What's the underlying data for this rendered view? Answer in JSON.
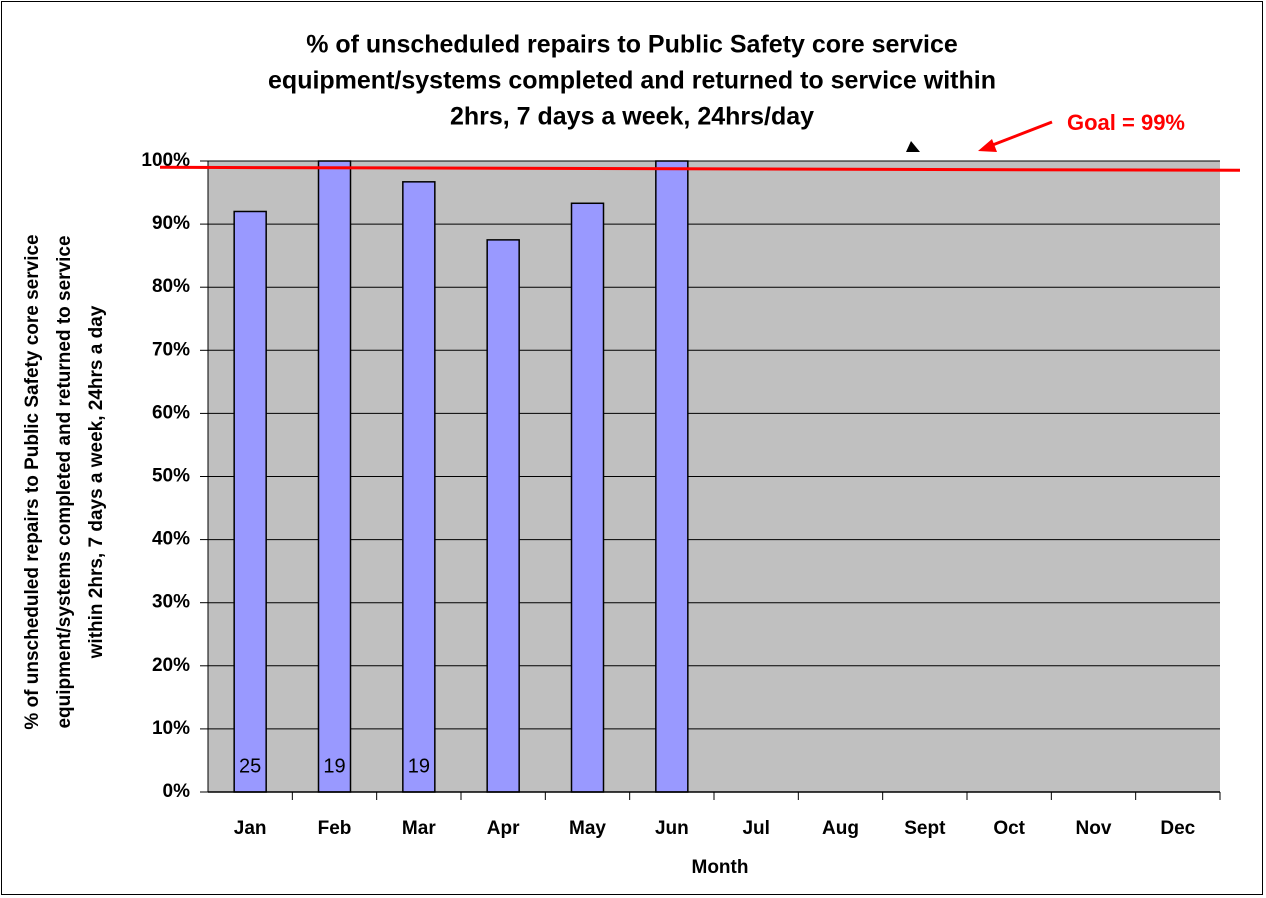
{
  "chart_data": {
    "type": "bar",
    "title": [
      "% of unscheduled repairs to Public Safety core service",
      "equipment/systems completed and returned to service within",
      "2hrs, 7 days a week, 24hrs/day"
    ],
    "y_label": [
      "% of unscheduled repairs to Public Safety core service",
      "equipment/systems completed and returned to service",
      "within 2hrs, 7 days a week, 24hrs a day"
    ],
    "x_label": "Month",
    "categories": [
      "Jan",
      "Feb",
      "Mar",
      "Apr",
      "May",
      "Jun",
      "Jul",
      "Aug",
      "Sept",
      "Oct",
      "Nov",
      "Dec"
    ],
    "values": [
      92,
      100,
      96.7,
      87.5,
      93.3,
      100,
      null,
      null,
      null,
      null,
      null,
      null
    ],
    "counts": [
      25,
      19,
      19,
      null,
      null,
      null,
      null,
      null,
      null,
      null,
      null,
      null
    ],
    "color": "#9999ff",
    "ylim": [
      0,
      100
    ],
    "yticks": [
      {
        "value": 0,
        "label": "0%"
      },
      {
        "value": 10,
        "label": "10%"
      },
      {
        "value": 20,
        "label": "20%"
      },
      {
        "value": 30,
        "label": "30%"
      },
      {
        "value": 40,
        "label": "40%"
      },
      {
        "value": 50,
        "label": "50%"
      },
      {
        "value": 60,
        "label": "60%"
      },
      {
        "value": 70,
        "label": "70%"
      },
      {
        "value": 80,
        "label": "80%"
      },
      {
        "value": 90,
        "label": "90%"
      },
      {
        "value": 100,
        "label": "100%"
      }
    ],
    "grid": true,
    "goal": {
      "value": 99,
      "label": "Goal = 99%",
      "color": "#ff0000"
    }
  }
}
